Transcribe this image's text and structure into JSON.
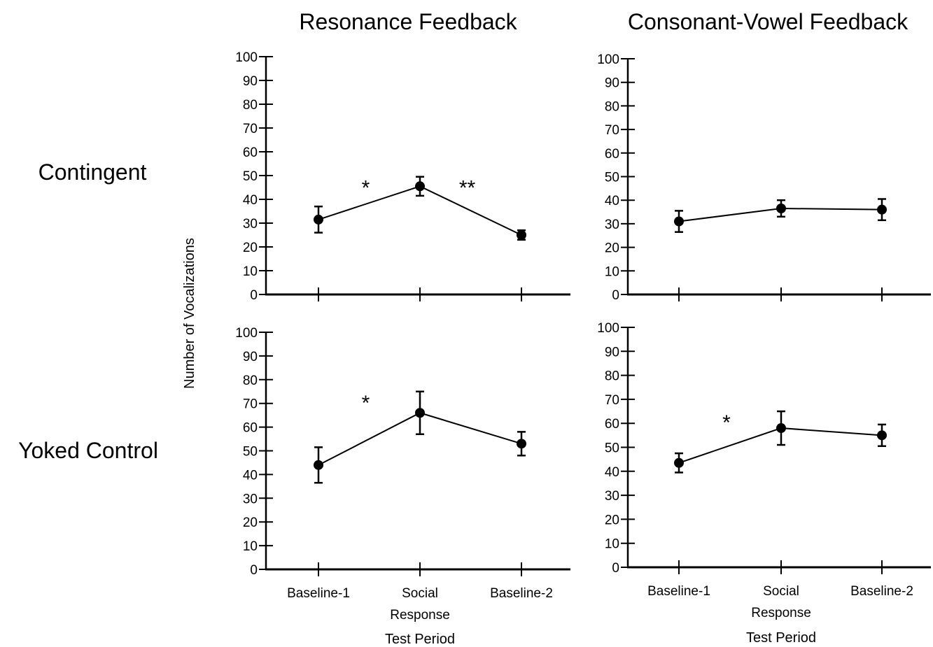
{
  "column_titles": [
    "Resonance Feedback",
    "Consonant-Vowel Feedback"
  ],
  "row_titles": [
    "Contingent",
    "Yoked Control"
  ],
  "ylabel": "Number of Vocalizations",
  "xlabel": "Test Period",
  "chart_data": [
    {
      "type": "line",
      "title": "",
      "xlabel": "",
      "ylabel": "Number of Vocalizations",
      "categories": [
        "Baseline-1",
        "Social Response",
        "Baseline-2"
      ],
      "values": [
        31.5,
        45.5,
        25
      ],
      "error": [
        5.5,
        4,
        2
      ],
      "ylim": [
        0,
        100
      ],
      "yticks": [
        0,
        10,
        20,
        30,
        40,
        50,
        60,
        70,
        80,
        90,
        100
      ],
      "significance": [
        {
          "between": [
            0,
            1
          ],
          "label": "*"
        },
        {
          "between": [
            1,
            2
          ],
          "label": "**"
        }
      ]
    },
    {
      "type": "line",
      "title": "",
      "xlabel": "",
      "ylabel": "",
      "categories": [
        "Baseline-1",
        "Social Response",
        "Baseline-2"
      ],
      "values": [
        31,
        36.5,
        36
      ],
      "error": [
        4.5,
        3.5,
        4.5
      ],
      "ylim": [
        0,
        100
      ],
      "yticks": [
        0,
        10,
        20,
        30,
        40,
        50,
        60,
        70,
        80,
        90,
        100
      ],
      "significance": []
    },
    {
      "type": "line",
      "title": "",
      "xlabel": "Test Period",
      "ylabel": "",
      "categories": [
        "Baseline-1",
        "Social Response",
        "Baseline-2"
      ],
      "values": [
        44,
        66,
        53
      ],
      "error": [
        7.5,
        9,
        5
      ],
      "ylim": [
        0,
        100
      ],
      "yticks": [
        0,
        10,
        20,
        30,
        40,
        50,
        60,
        70,
        80,
        90,
        100
      ],
      "significance": [
        {
          "between": [
            0,
            1
          ],
          "label": "*"
        }
      ]
    },
    {
      "type": "line",
      "title": "",
      "xlabel": "Test Period",
      "ylabel": "",
      "categories": [
        "Baseline-1",
        "Social Response",
        "Baseline-2"
      ],
      "values": [
        43.5,
        58,
        55
      ],
      "error": [
        4,
        7,
        4.5
      ],
      "ylim": [
        0,
        100
      ],
      "yticks": [
        0,
        10,
        20,
        30,
        40,
        50,
        60,
        70,
        80,
        90,
        100
      ],
      "significance": [
        {
          "between": [
            0,
            1
          ],
          "label": "*"
        }
      ]
    }
  ]
}
